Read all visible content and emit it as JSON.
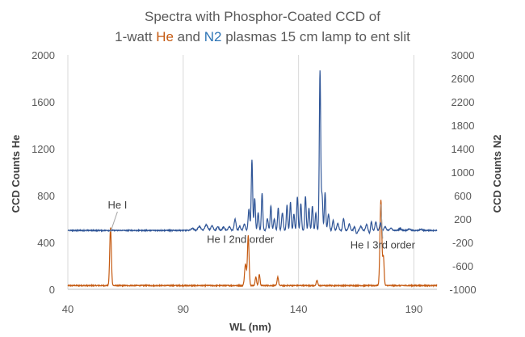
{
  "chart_data": {
    "type": "line",
    "title_line1": "Spectra with Phosphor-Coated CCD of",
    "title_line2_parts": [
      {
        "text": "1-watt ",
        "color": "#595959"
      },
      {
        "text": "He",
        "color": "#C55A11"
      },
      {
        "text": " and ",
        "color": "#595959"
      },
      {
        "text": "N2",
        "color": "#2E75B6"
      },
      {
        "text": " plasmas 15 cm lamp to ent slit",
        "color": "#595959"
      }
    ],
    "xlabel": "WL (nm)",
    "ylabel_left": "CCD Counts He",
    "ylabel_right": "CCD Counts N2",
    "xlim": [
      40,
      200
    ],
    "x_ticks": [
      40,
      90,
      140,
      190
    ],
    "ylim_left": [
      0,
      2000
    ],
    "y_ticks_left": [
      0,
      400,
      800,
      1200,
      1600,
      2000
    ],
    "ylim_right": [
      -1000,
      3000
    ],
    "y_ticks_right": [
      -1000,
      -600,
      -200,
      200,
      600,
      1000,
      1400,
      1800,
      2200,
      2600,
      3000
    ],
    "grid": "vertical",
    "series": [
      {
        "name": "He",
        "axis": "left",
        "color": "#C55A11",
        "baseline": 32,
        "noise": 4,
        "peaks": [
          {
            "x": 58.5,
            "y": 495,
            "w": 0.35
          },
          {
            "x": 117.0,
            "y": 180,
            "w": 0.4
          },
          {
            "x": 118.2,
            "y": 425,
            "w": 0.35
          },
          {
            "x": 121.5,
            "y": 75,
            "w": 0.3
          },
          {
            "x": 123.0,
            "y": 95,
            "w": 0.3
          },
          {
            "x": 131.0,
            "y": 75,
            "w": 0.3
          },
          {
            "x": 148.0,
            "y": 45,
            "w": 0.3
          },
          {
            "x": 175.7,
            "y": 730,
            "w": 0.4
          },
          {
            "x": 176.8,
            "y": 240,
            "w": 0.3
          }
        ]
      },
      {
        "name": "N2",
        "axis": "right",
        "color": "#2F5597",
        "baseline": 5,
        "noise": 8,
        "peaks": [
          {
            "x": 94,
            "y": 35,
            "w": 0.6
          },
          {
            "x": 97,
            "y": 70,
            "w": 0.6
          },
          {
            "x": 100,
            "y": 95,
            "w": 0.6
          },
          {
            "x": 102.5,
            "y": 80,
            "w": 0.5
          },
          {
            "x": 105,
            "y": 60,
            "w": 0.5
          },
          {
            "x": 107.5,
            "y": 55,
            "w": 0.5
          },
          {
            "x": 110,
            "y": 60,
            "w": 0.5
          },
          {
            "x": 112.5,
            "y": 190,
            "w": 0.4
          },
          {
            "x": 114.5,
            "y": 70,
            "w": 0.4
          },
          {
            "x": 116.5,
            "y": 110,
            "w": 0.4
          },
          {
            "x": 118.5,
            "y": 360,
            "w": 0.35
          },
          {
            "x": 119.8,
            "y": 1200,
            "w": 0.3
          },
          {
            "x": 121.0,
            "y": 550,
            "w": 0.3
          },
          {
            "x": 122.5,
            "y": 300,
            "w": 0.3
          },
          {
            "x": 124.2,
            "y": 630,
            "w": 0.3
          },
          {
            "x": 126.5,
            "y": 200,
            "w": 0.35
          },
          {
            "x": 128.0,
            "y": 420,
            "w": 0.3
          },
          {
            "x": 129.5,
            "y": 200,
            "w": 0.35
          },
          {
            "x": 131.2,
            "y": 380,
            "w": 0.3
          },
          {
            "x": 133.0,
            "y": 300,
            "w": 0.35
          },
          {
            "x": 135.0,
            "y": 430,
            "w": 0.3
          },
          {
            "x": 136.5,
            "y": 480,
            "w": 0.3
          },
          {
            "x": 138.0,
            "y": 280,
            "w": 0.3
          },
          {
            "x": 139.5,
            "y": 580,
            "w": 0.3
          },
          {
            "x": 141.0,
            "y": 460,
            "w": 0.3
          },
          {
            "x": 143.0,
            "y": 580,
            "w": 0.3
          },
          {
            "x": 144.5,
            "y": 380,
            "w": 0.3
          },
          {
            "x": 146.0,
            "y": 420,
            "w": 0.3
          },
          {
            "x": 147.5,
            "y": 300,
            "w": 0.3
          },
          {
            "x": 149.3,
            "y": 2730,
            "w": 0.3
          },
          {
            "x": 150.2,
            "y": 600,
            "w": 0.3
          },
          {
            "x": 151.5,
            "y": 650,
            "w": 0.3
          },
          {
            "x": 153.0,
            "y": 280,
            "w": 0.35
          },
          {
            "x": 155.0,
            "y": 170,
            "w": 0.35
          },
          {
            "x": 157.0,
            "y": 120,
            "w": 0.4
          },
          {
            "x": 159.5,
            "y": 200,
            "w": 0.35
          },
          {
            "x": 162.0,
            "y": 110,
            "w": 0.4
          },
          {
            "x": 164.5,
            "y": 90,
            "w": 0.45
          },
          {
            "x": 167.0,
            "y": 70,
            "w": 0.45
          },
          {
            "x": 169.5,
            "y": 100,
            "w": 0.4
          },
          {
            "x": 171.5,
            "y": 180,
            "w": 0.35
          },
          {
            "x": 173.5,
            "y": 150,
            "w": 0.35
          },
          {
            "x": 175.5,
            "y": 130,
            "w": 0.35
          },
          {
            "x": 177.5,
            "y": 60,
            "w": 0.45
          },
          {
            "x": 180.0,
            "y": 40,
            "w": 0.5
          },
          {
            "x": 184.0,
            "y": 30,
            "w": 0.5
          },
          {
            "x": 188.0,
            "y": 25,
            "w": 0.5
          },
          {
            "x": 193.0,
            "y": 20,
            "w": 0.5
          }
        ],
        "dips": [
          {
            "x": 165.0,
            "y": -90,
            "w": 0.4
          },
          {
            "x": 171.0,
            "y": -75,
            "w": 0.4
          }
        ]
      }
    ],
    "annotations": [
      {
        "text": "He I",
        "x": 61.5,
        "y_left": 690,
        "leader_to": {
          "x": 58.5,
          "y_left": 490
        }
      },
      {
        "text": "He I 2nd order",
        "x": 114.8,
        "y_left": 395
      },
      {
        "text": "He I 3rd order",
        "x": 176.5,
        "y_left": 350,
        "leader_to": {
          "x": 175.7,
          "y_left": 725
        }
      }
    ]
  }
}
